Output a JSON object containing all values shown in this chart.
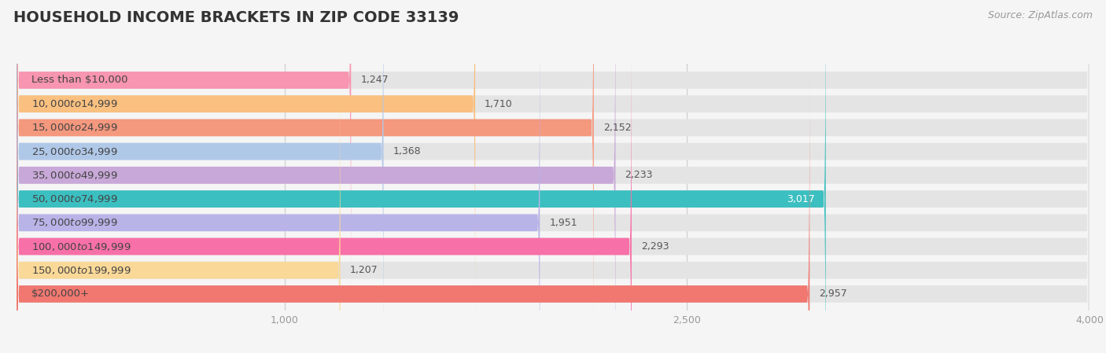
{
  "title": "HOUSEHOLD INCOME BRACKETS IN ZIP CODE 33139",
  "source": "Source: ZipAtlas.com",
  "categories": [
    "Less than $10,000",
    "$10,000 to $14,999",
    "$15,000 to $24,999",
    "$25,000 to $34,999",
    "$35,000 to $49,999",
    "$50,000 to $74,999",
    "$75,000 to $99,999",
    "$100,000 to $149,999",
    "$150,000 to $199,999",
    "$200,000+"
  ],
  "values": [
    1247,
    1710,
    2152,
    1368,
    2233,
    3017,
    1951,
    2293,
    1207,
    2957
  ],
  "bar_colors": [
    "#f895b0",
    "#f9c080",
    "#f4987e",
    "#b0c8e8",
    "#c8a8d8",
    "#3cbfc0",
    "#b8b4e8",
    "#f870a8",
    "#f9d898",
    "#f07870"
  ],
  "bg_color": "#f5f5f5",
  "bar_bg_color": "#e4e4e4",
  "xlim": [
    0,
    4000
  ],
  "xticks": [
    1000,
    2500,
    4000
  ],
  "bar_height": 0.72,
  "bar_gap": 0.28,
  "title_fontsize": 14,
  "label_fontsize": 9.5,
  "value_fontsize": 9,
  "source_fontsize": 9,
  "value_color_default": "#555555",
  "value_color_white": "#ffffff",
  "label_color": "#444444",
  "tick_color": "#999999"
}
